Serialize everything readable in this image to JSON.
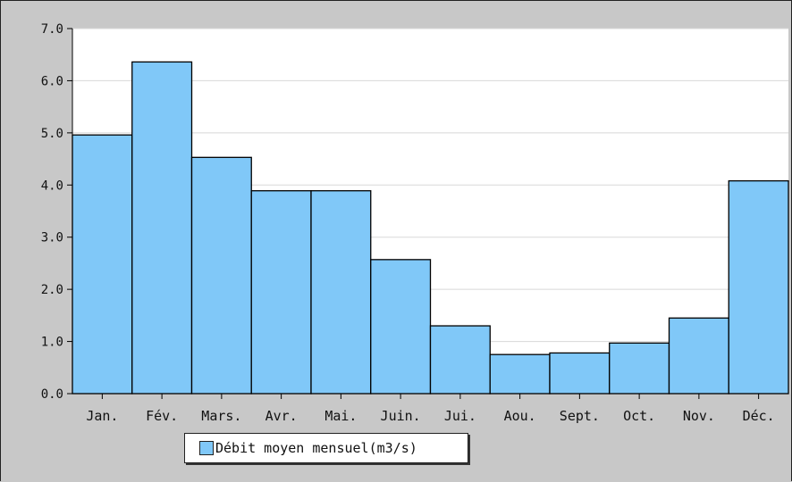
{
  "chart_data": {
    "type": "bar",
    "categories": [
      "Jan.",
      "Fév.",
      "Mars.",
      "Avr.",
      "Mai.",
      "Juin.",
      "Jui.",
      "Aou.",
      "Sept.",
      "Oct.",
      "Nov.",
      "Déc."
    ],
    "series": [
      {
        "name": "Débit moyen mensuel(m3/s)",
        "values": [
          4.96,
          6.36,
          4.53,
          3.89,
          3.89,
          2.57,
          1.3,
          0.75,
          0.78,
          0.97,
          1.45,
          4.08
        ],
        "color": "#80c8f8"
      }
    ],
    "ylim": [
      0,
      7.0
    ],
    "yticks": [
      "0.0",
      "1.0",
      "2.0",
      "3.0",
      "4.0",
      "5.0",
      "6.0",
      "7.0"
    ],
    "grid": "horizontal",
    "legend_position": "bottom-left",
    "title": "",
    "xlabel": "",
    "ylabel": ""
  }
}
